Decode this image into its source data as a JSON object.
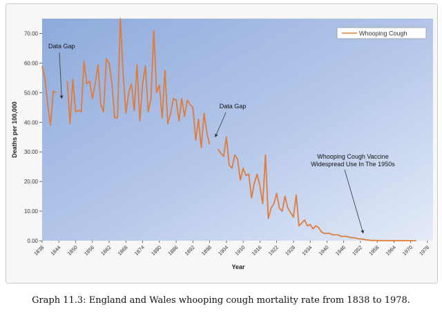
{
  "chart_data": {
    "type": "line",
    "xlabel": "Year",
    "ylabel": "Deaths per 100,000",
    "ylim": [
      0,
      75
    ],
    "xlim": [
      1838,
      1978
    ],
    "y_ticks": [
      "0.00",
      "10.00",
      "20.00",
      "30.00",
      "40.00",
      "50.00",
      "60.00",
      "70.00"
    ],
    "x_ticks": [
      "1838",
      "1844",
      "1850",
      "1856",
      "1862",
      "1868",
      "1874",
      "1880",
      "1886",
      "1892",
      "1898",
      "1904",
      "1910",
      "1916",
      "1922",
      "1928",
      "1934",
      "1940",
      "1946",
      "1952",
      "1958",
      "1964",
      "1970",
      "1976"
    ],
    "grid": false,
    "legend_position": "top-right",
    "series": [
      {
        "name": "Whooping Cough",
        "color": "#e07b39",
        "segments": [
          [
            [
              1838,
              59
            ],
            [
              1839,
              55
            ],
            [
              1840,
              46
            ],
            [
              1841,
              39
            ],
            [
              1842,
              50.5
            ],
            [
              1843,
              50
            ]
          ],
          [
            [
              1847,
              54
            ],
            [
              1848,
              39.5
            ],
            [
              1849,
              54.5
            ],
            [
              1850,
              43.5
            ],
            [
              1851,
              44
            ],
            [
              1852,
              43.5
            ],
            [
              1853,
              60.5
            ],
            [
              1854,
              53
            ],
            [
              1855,
              54
            ],
            [
              1856,
              48
            ],
            [
              1857,
              53
            ],
            [
              1858,
              59.5
            ],
            [
              1859,
              46
            ],
            [
              1860,
              43.5
            ],
            [
              1861,
              61.5
            ],
            [
              1862,
              60
            ],
            [
              1863,
              53
            ],
            [
              1864,
              41.5
            ],
            [
              1865,
              41.5
            ],
            [
              1866,
              75
            ],
            [
              1867,
              57
            ],
            [
              1868,
              43
            ],
            [
              1869,
              50
            ],
            [
              1870,
              53
            ],
            [
              1871,
              44
            ],
            [
              1872,
              59.5
            ],
            [
              1873,
              40.5
            ],
            [
              1874,
              53
            ],
            [
              1875,
              59
            ],
            [
              1876,
              43.5
            ],
            [
              1877,
              48
            ],
            [
              1878,
              71
            ],
            [
              1879,
              50
            ],
            [
              1880,
              52.5
            ],
            [
              1881,
              41.5
            ],
            [
              1882,
              57.5
            ],
            [
              1883,
              39.5
            ],
            [
              1884,
              43
            ],
            [
              1885,
              48
            ],
            [
              1886,
              47.5
            ],
            [
              1887,
              40.5
            ],
            [
              1888,
              48
            ],
            [
              1889,
              42
            ],
            [
              1890,
              47.5
            ],
            [
              1891,
              46
            ],
            [
              1892,
              45
            ],
            [
              1893,
              34
            ],
            [
              1894,
              41
            ],
            [
              1895,
              31.5
            ],
            [
              1896,
              43
            ],
            [
              1897,
              36.5
            ],
            [
              1898,
              32.5
            ]
          ],
          [
            [
              1901,
              31
            ],
            [
              1902,
              29.5
            ],
            [
              1903,
              28.5
            ],
            [
              1904,
              35
            ],
            [
              1905,
              25.5
            ],
            [
              1906,
              24.5
            ],
            [
              1907,
              29
            ],
            [
              1908,
              27.5
            ],
            [
              1909,
              20.5
            ],
            [
              1910,
              24.5
            ],
            [
              1911,
              22
            ],
            [
              1912,
              22.5
            ],
            [
              1913,
              14.5
            ],
            [
              1914,
              19.5
            ],
            [
              1915,
              22.5
            ],
            [
              1916,
              18.5
            ],
            [
              1917,
              12.5
            ],
            [
              1918,
              29
            ],
            [
              1919,
              7.5
            ],
            [
              1920,
              11
            ],
            [
              1921,
              12.5
            ],
            [
              1922,
              16
            ],
            [
              1923,
              11
            ],
            [
              1924,
              10
            ],
            [
              1925,
              15
            ],
            [
              1926,
              11
            ],
            [
              1927,
              9.5
            ],
            [
              1928,
              8
            ],
            [
              1929,
              15.5
            ],
            [
              1930,
              5
            ],
            [
              1931,
              6
            ],
            [
              1932,
              7
            ],
            [
              1933,
              5
            ],
            [
              1934,
              5.5
            ],
            [
              1935,
              4
            ],
            [
              1936,
              5
            ],
            [
              1937,
              4.5
            ],
            [
              1938,
              3
            ],
            [
              1939,
              2.5
            ],
            [
              1940,
              2.5
            ],
            [
              1941,
              2.5
            ],
            [
              1942,
              2
            ],
            [
              1943,
              2
            ],
            [
              1944,
              2
            ],
            [
              1945,
              1.5
            ],
            [
              1946,
              1.5
            ],
            [
              1947,
              1.5
            ],
            [
              1948,
              1.2
            ],
            [
              1949,
              1
            ],
            [
              1950,
              1
            ],
            [
              1951,
              0.7
            ],
            [
              1952,
              0.6
            ],
            [
              1953,
              0.5
            ],
            [
              1954,
              0.3
            ],
            [
              1955,
              0.2
            ],
            [
              1956,
              0.1
            ],
            [
              1957,
              0.1
            ],
            [
              1958,
              0.1
            ],
            [
              1960,
              0.05
            ],
            [
              1965,
              0.05
            ],
            [
              1970,
              0.03
            ],
            [
              1972,
              0.02
            ]
          ]
        ]
      }
    ],
    "annotations": [
      {
        "id": "gap1",
        "text": "Data Gap",
        "arrow_to": [
          1845,
          48
        ]
      },
      {
        "id": "gap2",
        "text": "Data Gap",
        "arrow_to": [
          1900,
          35
        ]
      },
      {
        "id": "vaccine",
        "lines": [
          "Whooping Cough Vaccine",
          "Widespread Use In The 1950s"
        ],
        "arrow_to": [
          1953,
          2.5
        ]
      }
    ]
  },
  "caption": "Graph 11.3: England and Wales whooping cough mortality rate from 1838 to 1978."
}
